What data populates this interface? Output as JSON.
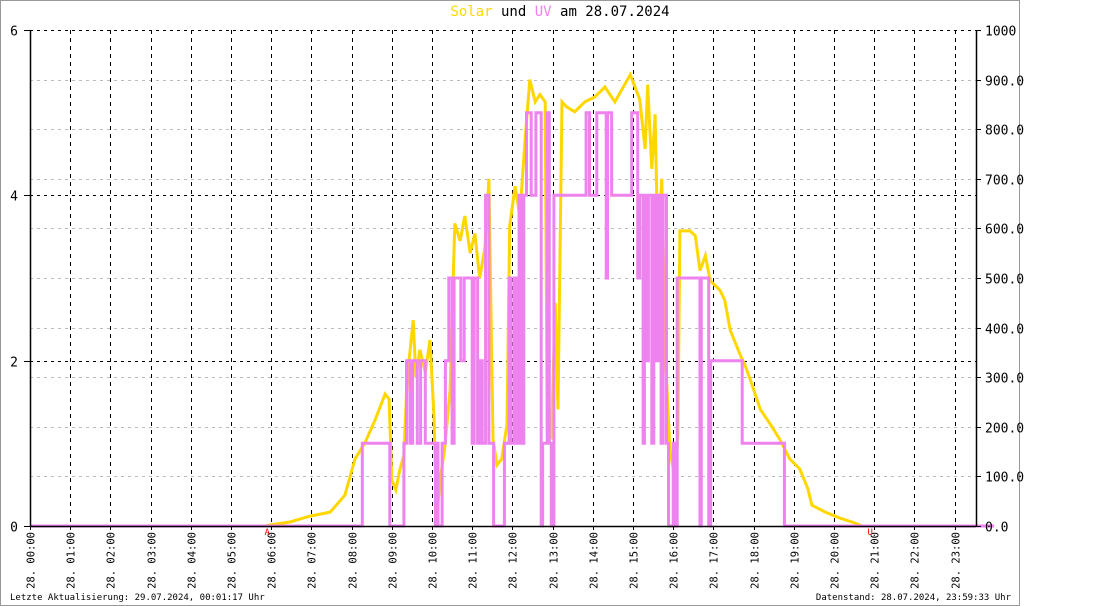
{
  "title": {
    "solar": "Solar",
    "und": "und",
    "uv": "UV",
    "date": "am 28.07.2024"
  },
  "colors": {
    "solar": "#FFD700",
    "uv": "#EE82EE",
    "marker": "#FF0000",
    "grid_major": "#000000",
    "grid_minor": "#BBBBBB"
  },
  "footer": {
    "left": "Letzte Aktualisierung: 29.07.2024, 00:01:17 Uhr",
    "right": "Datenstand: 28.07.2024, 23:59:33 Uhr"
  },
  "chart_data": {
    "type": "line",
    "title": "Solar und UV am 28.07.2024",
    "grid": true,
    "x_ticks": [
      "28. 00:00",
      "28. 01:00",
      "28. 02:00",
      "28. 03:00",
      "28. 04:00",
      "28. 05:00",
      "28. 06:00",
      "28. 07:00",
      "28. 08:00",
      "28. 09:00",
      "28. 10:00",
      "28. 11:00",
      "28. 12:00",
      "28. 13:00",
      "28. 14:00",
      "28. 15:00",
      "28. 16:00",
      "28. 17:00",
      "28. 18:00",
      "28. 19:00",
      "28. 20:00",
      "28. 21:00",
      "28. 22:00",
      "28. 23:00"
    ],
    "y_left": {
      "ylim": [
        0,
        6
      ],
      "ticks": [
        "0",
        "2",
        "4",
        "6"
      ]
    },
    "y_right": {
      "ylim": [
        0,
        1000
      ],
      "ticks": [
        "0.0",
        "100.0",
        "200.0",
        "300.0",
        "400.0",
        "500.0",
        "600.0",
        "700.0",
        "800.0",
        "900.0",
        "1000"
      ]
    },
    "markers": [
      {
        "label": "A",
        "time": "06:00"
      },
      {
        "label": "U",
        "time": "21:00"
      }
    ],
    "series": [
      {
        "axis": "right",
        "color": "#FFD700",
        "points": [
          [
            "00:00",
            0
          ],
          [
            "05:51",
            0
          ],
          [
            "05:58",
            2
          ],
          [
            "06:28",
            8
          ],
          [
            "06:58",
            20
          ],
          [
            "07:28",
            28
          ],
          [
            "07:50",
            62
          ],
          [
            "08:05",
            135
          ],
          [
            "08:20",
            168
          ],
          [
            "08:35",
            214
          ],
          [
            "08:50",
            266
          ],
          [
            "08:56",
            256
          ],
          [
            "09:00",
            93
          ],
          [
            "09:06",
            73
          ],
          [
            "09:12",
            113
          ],
          [
            "09:18",
            143
          ],
          [
            "09:23",
            300
          ],
          [
            "09:27",
            350
          ],
          [
            "09:32",
            415
          ],
          [
            "09:36",
            300
          ],
          [
            "09:42",
            355
          ],
          [
            "09:50",
            310
          ],
          [
            "09:57",
            375
          ],
          [
            "10:03",
            220
          ],
          [
            "10:07",
            12
          ],
          [
            "10:12",
            93
          ],
          [
            "10:19",
            155
          ],
          [
            "10:27",
            275
          ],
          [
            "10:34",
            610
          ],
          [
            "10:42",
            575
          ],
          [
            "10:49",
            625
          ],
          [
            "10:57",
            550
          ],
          [
            "11:04",
            590
          ],
          [
            "11:11",
            500
          ],
          [
            "11:19",
            560
          ],
          [
            "11:25",
            700
          ],
          [
            "11:31",
            175
          ],
          [
            "11:37",
            123
          ],
          [
            "11:44",
            135
          ],
          [
            "11:52",
            205
          ],
          [
            "11:56",
            605
          ],
          [
            "12:04",
            685
          ],
          [
            "12:11",
            625
          ],
          [
            "12:19",
            780
          ],
          [
            "12:26",
            900
          ],
          [
            "12:34",
            855
          ],
          [
            "12:41",
            870
          ],
          [
            "12:49",
            855
          ],
          [
            "12:52",
            195
          ],
          [
            "12:58",
            175
          ],
          [
            "13:04",
            450
          ],
          [
            "13:08",
            235
          ],
          [
            "13:14",
            855
          ],
          [
            "13:21",
            845
          ],
          [
            "13:33",
            835
          ],
          [
            "13:48",
            855
          ],
          [
            "14:03",
            865
          ],
          [
            "14:18",
            885
          ],
          [
            "14:33",
            855
          ],
          [
            "14:56",
            910
          ],
          [
            "15:10",
            860
          ],
          [
            "15:18",
            760
          ],
          [
            "15:22",
            890
          ],
          [
            "15:28",
            720
          ],
          [
            "15:33",
            830
          ],
          [
            "15:37",
            555
          ],
          [
            "15:43",
            700
          ],
          [
            "15:48",
            355
          ],
          [
            "15:55",
            153
          ],
          [
            "16:03",
            93
          ],
          [
            "16:07",
            185
          ],
          [
            "16:10",
            595
          ],
          [
            "16:25",
            595
          ],
          [
            "16:33",
            585
          ],
          [
            "16:40",
            515
          ],
          [
            "16:48",
            545
          ],
          [
            "16:55",
            495
          ],
          [
            "17:10",
            475
          ],
          [
            "17:17",
            455
          ],
          [
            "17:25",
            395
          ],
          [
            "17:40",
            345
          ],
          [
            "17:47",
            325
          ],
          [
            "17:55",
            295
          ],
          [
            "18:10",
            235
          ],
          [
            "18:25",
            205
          ],
          [
            "18:39",
            175
          ],
          [
            "18:54",
            135
          ],
          [
            "19:09",
            115
          ],
          [
            "19:21",
            75
          ],
          [
            "19:27",
            42
          ],
          [
            "19:47",
            28
          ],
          [
            "20:09",
            16
          ],
          [
            "20:31",
            6
          ],
          [
            "20:42",
            0
          ],
          [
            "23:59",
            0
          ]
        ]
      },
      {
        "axis": "left",
        "color": "#EE82EE",
        "step": true,
        "points": [
          [
            "00:00",
            0
          ],
          [
            "08:16",
            1
          ],
          [
            "08:57",
            0
          ],
          [
            "09:18",
            1
          ],
          [
            "09:22",
            2
          ],
          [
            "09:27",
            1
          ],
          [
            "09:31",
            2
          ],
          [
            "09:38",
            1
          ],
          [
            "09:43",
            2
          ],
          [
            "09:50",
            1
          ],
          [
            "10:05",
            0
          ],
          [
            "10:07",
            1
          ],
          [
            "10:09",
            0
          ],
          [
            "10:15",
            1
          ],
          [
            "10:20",
            2
          ],
          [
            "10:25",
            3
          ],
          [
            "10:30",
            1
          ],
          [
            "10:33",
            3
          ],
          [
            "10:43",
            2
          ],
          [
            "10:48",
            3
          ],
          [
            "11:00",
            1
          ],
          [
            "11:03",
            3
          ],
          [
            "11:08",
            1
          ],
          [
            "11:12",
            2
          ],
          [
            "11:15",
            1
          ],
          [
            "11:20",
            4
          ],
          [
            "11:25",
            1
          ],
          [
            "11:32",
            0
          ],
          [
            "11:48",
            1
          ],
          [
            "11:55",
            3
          ],
          [
            "11:58",
            1
          ],
          [
            "12:03",
            3
          ],
          [
            "12:06",
            1
          ],
          [
            "12:10",
            4
          ],
          [
            "12:13",
            1
          ],
          [
            "12:17",
            4
          ],
          [
            "12:21",
            5
          ],
          [
            "12:28",
            4
          ],
          [
            "12:35",
            5
          ],
          [
            "12:43",
            0
          ],
          [
            "12:45",
            1
          ],
          [
            "12:52",
            5
          ],
          [
            "12:55",
            1
          ],
          [
            "12:58",
            0
          ],
          [
            "13:02",
            4
          ],
          [
            "13:50",
            5
          ],
          [
            "13:55",
            4
          ],
          [
            "14:06",
            5
          ],
          [
            "14:20",
            3
          ],
          [
            "14:22",
            5
          ],
          [
            "14:28",
            4
          ],
          [
            "14:58",
            5
          ],
          [
            "15:07",
            3
          ],
          [
            "15:10",
            4
          ],
          [
            "15:15",
            1
          ],
          [
            "15:17",
            4
          ],
          [
            "15:20",
            2
          ],
          [
            "15:23",
            4
          ],
          [
            "15:28",
            1
          ],
          [
            "15:31",
            4
          ],
          [
            "15:35",
            2
          ],
          [
            "15:38",
            4
          ],
          [
            "15:42",
            1
          ],
          [
            "15:45",
            4
          ],
          [
            "15:50",
            1
          ],
          [
            "15:53",
            0
          ],
          [
            "16:00",
            1
          ],
          [
            "16:02",
            0
          ],
          [
            "16:06",
            3
          ],
          [
            "16:40",
            0
          ],
          [
            "16:42",
            3
          ],
          [
            "16:53",
            0
          ],
          [
            "16:56",
            2
          ],
          [
            "17:43",
            1
          ],
          [
            "18:46",
            0
          ],
          [
            "23:59",
            0
          ]
        ]
      }
    ]
  }
}
